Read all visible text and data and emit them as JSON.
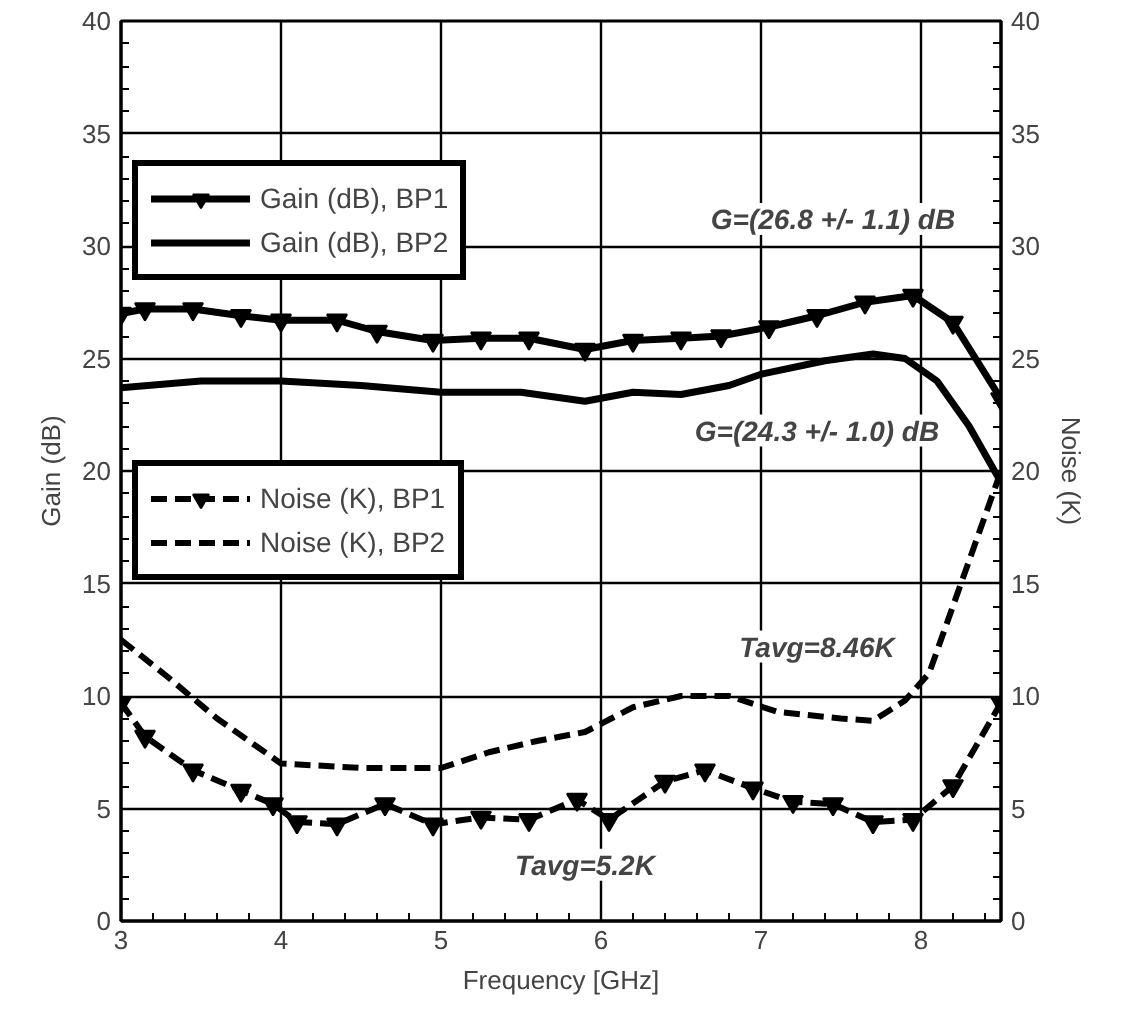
{
  "chart_data": {
    "type": "line",
    "xlabel": "Frequency [GHz]",
    "ylabel": "Gain (dB)",
    "y2label": "Noise (K)",
    "xlim": [
      3,
      8.5
    ],
    "xticks": [
      3,
      4,
      5,
      6,
      7,
      8
    ],
    "ylim": [
      0,
      40
    ],
    "yticks": [
      0,
      5,
      10,
      15,
      20,
      25,
      30,
      35,
      40
    ],
    "y2lim": [
      0,
      40
    ],
    "y2ticks": [
      0,
      5,
      10,
      15,
      20,
      25,
      30,
      35,
      40
    ],
    "grid": true,
    "legend": "left",
    "series": [
      {
        "name": "Gain (dB), BP1",
        "color": "#000000",
        "marker": "triangle",
        "line_style": "solid",
        "x": [
          3.0,
          3.15,
          3.45,
          3.75,
          4.0,
          4.35,
          4.6,
          4.95,
          5.25,
          5.55,
          5.9,
          6.2,
          6.5,
          6.75,
          7.05,
          7.35,
          7.65,
          7.95,
          8.2,
          8.5
        ],
        "values": [
          27.0,
          27.2,
          27.2,
          26.9,
          26.7,
          26.7,
          26.2,
          25.8,
          25.9,
          25.9,
          25.4,
          25.8,
          25.9,
          26.0,
          26.4,
          26.9,
          27.5,
          27.8,
          26.6,
          23.2
        ]
      },
      {
        "name": "Gain (dB), BP2",
        "color": "#000000",
        "marker": "none",
        "line_style": "solid",
        "x": [
          3.0,
          3.5,
          4.0,
          4.5,
          5.0,
          5.5,
          5.9,
          6.2,
          6.5,
          6.8,
          7.0,
          7.4,
          7.7,
          7.9,
          8.1,
          8.3,
          8.5
        ],
        "values": [
          23.7,
          24.0,
          24.0,
          23.8,
          23.5,
          23.5,
          23.1,
          23.5,
          23.4,
          23.8,
          24.3,
          24.9,
          25.2,
          25.0,
          24.0,
          22.0,
          19.5
        ]
      },
      {
        "name": "Noise (K), BP1",
        "color": "#000000",
        "marker": "triangle",
        "line_style": "dashed",
        "axis": "y2",
        "x": [
          3.0,
          3.15,
          3.45,
          3.75,
          3.95,
          4.1,
          4.35,
          4.65,
          4.95,
          5.25,
          5.55,
          5.85,
          6.05,
          6.4,
          6.65,
          6.95,
          7.2,
          7.45,
          7.7,
          7.95,
          8.2,
          8.5
        ],
        "values": [
          9.7,
          8.2,
          6.7,
          5.8,
          5.2,
          4.4,
          4.3,
          5.2,
          4.3,
          4.6,
          4.5,
          5.4,
          4.5,
          6.2,
          6.7,
          5.9,
          5.3,
          5.2,
          4.4,
          4.5,
          6.0,
          9.7
        ]
      },
      {
        "name": "Noise (K), BP2",
        "color": "#000000",
        "marker": "none",
        "line_style": "dashed",
        "axis": "y2",
        "x": [
          3.0,
          3.3,
          3.6,
          4.0,
          4.5,
          5.0,
          5.3,
          5.6,
          5.9,
          6.2,
          6.5,
          6.8,
          7.1,
          7.5,
          7.7,
          7.9,
          8.05,
          8.2,
          8.35,
          8.5
        ],
        "values": [
          12.5,
          10.8,
          9.0,
          7.0,
          6.8,
          6.8,
          7.5,
          8.0,
          8.4,
          9.5,
          10.0,
          10.0,
          9.3,
          9.0,
          8.9,
          9.8,
          11.0,
          14.0,
          17.0,
          20.0
        ]
      }
    ],
    "annotations": [
      "G=(26.8 +/- 1.1) dB",
      "G=(24.3 +/- 1.0) dB",
      "Tavg=8.46K",
      "Tavg=5.2K"
    ]
  }
}
